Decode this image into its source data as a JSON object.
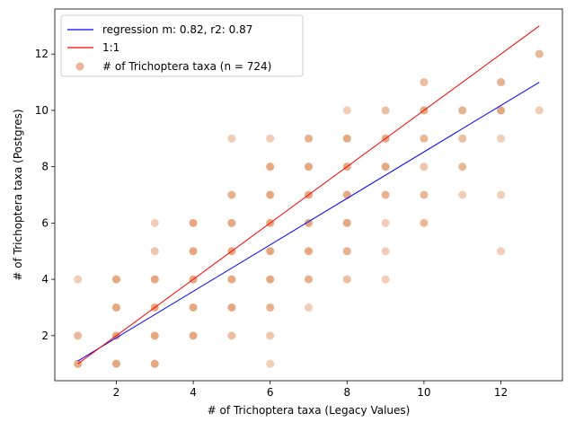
{
  "chart_data": {
    "type": "scatter",
    "title": "",
    "xlabel": "# of Trichoptera taxa (Legacy Values)",
    "ylabel": "# of Trichoptera taxa (Postgres)",
    "xlim": [
      0.4,
      13.6
    ],
    "ylim": [
      0.4,
      13.6
    ],
    "xticks": [
      2,
      4,
      6,
      8,
      10,
      12
    ],
    "yticks": [
      2,
      4,
      6,
      8,
      10,
      12
    ],
    "grid": false,
    "legend_position": "top-left",
    "colors": {
      "scatter": "#d97a3e",
      "regression": "#0000ff",
      "identity": "#ff0000"
    },
    "lines": [
      {
        "name": "regression m: 0.82, r2: 0.87",
        "x": [
          1,
          13
        ],
        "y": [
          1.1,
          11.0
        ]
      },
      {
        "name": "1:1",
        "x": [
          1,
          13
        ],
        "y": [
          1,
          13
        ]
      }
    ],
    "series": [
      {
        "name": "# of Trichoptera taxa (n = 724)",
        "points": [
          [
            1,
            1
          ],
          [
            1,
            2
          ],
          [
            1,
            4
          ],
          [
            2,
            1
          ],
          [
            2,
            2
          ],
          [
            2,
            3
          ],
          [
            2,
            4
          ],
          [
            3,
            1
          ],
          [
            3,
            2
          ],
          [
            3,
            3
          ],
          [
            3,
            4
          ],
          [
            3,
            5
          ],
          [
            3,
            6
          ],
          [
            4,
            2
          ],
          [
            4,
            3
          ],
          [
            4,
            4
          ],
          [
            4,
            5
          ],
          [
            4,
            6
          ],
          [
            5,
            2
          ],
          [
            5,
            3
          ],
          [
            5,
            4
          ],
          [
            5,
            5
          ],
          [
            5,
            6
          ],
          [
            5,
            7
          ],
          [
            5,
            9
          ],
          [
            6,
            1
          ],
          [
            6,
            2
          ],
          [
            6,
            3
          ],
          [
            6,
            4
          ],
          [
            6,
            5
          ],
          [
            6,
            6
          ],
          [
            6,
            7
          ],
          [
            6,
            8
          ],
          [
            6,
            9
          ],
          [
            7,
            3
          ],
          [
            7,
            4
          ],
          [
            7,
            5
          ],
          [
            7,
            6
          ],
          [
            7,
            7
          ],
          [
            7,
            8
          ],
          [
            7,
            9
          ],
          [
            8,
            4
          ],
          [
            8,
            5
          ],
          [
            8,
            6
          ],
          [
            8,
            7
          ],
          [
            8,
            8
          ],
          [
            8,
            9
          ],
          [
            8,
            10
          ],
          [
            9,
            4
          ],
          [
            9,
            5
          ],
          [
            9,
            6
          ],
          [
            9,
            7
          ],
          [
            9,
            8
          ],
          [
            9,
            9
          ],
          [
            9,
            10
          ],
          [
            10,
            6
          ],
          [
            10,
            7
          ],
          [
            10,
            8
          ],
          [
            10,
            9
          ],
          [
            10,
            10
          ],
          [
            10,
            11
          ],
          [
            11,
            7
          ],
          [
            11,
            8
          ],
          [
            11,
            9
          ],
          [
            11,
            10
          ],
          [
            12,
            5
          ],
          [
            12,
            7
          ],
          [
            12,
            9
          ],
          [
            12,
            10
          ],
          [
            12,
            11
          ],
          [
            13,
            10
          ],
          [
            13,
            12
          ]
        ],
        "opacity": [
          1,
          0.8,
          0.5,
          1,
          1,
          1,
          1,
          1,
          1,
          1,
          1,
          0.6,
          0.5,
          1,
          1,
          1,
          1,
          1,
          0.7,
          1,
          1,
          1,
          1,
          0.9,
          0.5,
          0.5,
          0.6,
          0.9,
          1,
          1,
          1,
          1,
          1,
          0.5,
          0.5,
          0.9,
          1,
          1,
          1,
          1,
          0.9,
          0.7,
          0.9,
          1,
          1,
          1,
          1,
          0.5,
          0.5,
          0.5,
          0.5,
          0.9,
          1,
          1,
          0.7,
          0.8,
          0.8,
          0.6,
          0.8,
          1,
          0.7,
          0.5,
          0.8,
          0.7,
          0.9,
          0.5,
          0.5,
          0.5,
          1,
          0.9,
          0.5,
          0.8
        ]
      }
    ]
  }
}
